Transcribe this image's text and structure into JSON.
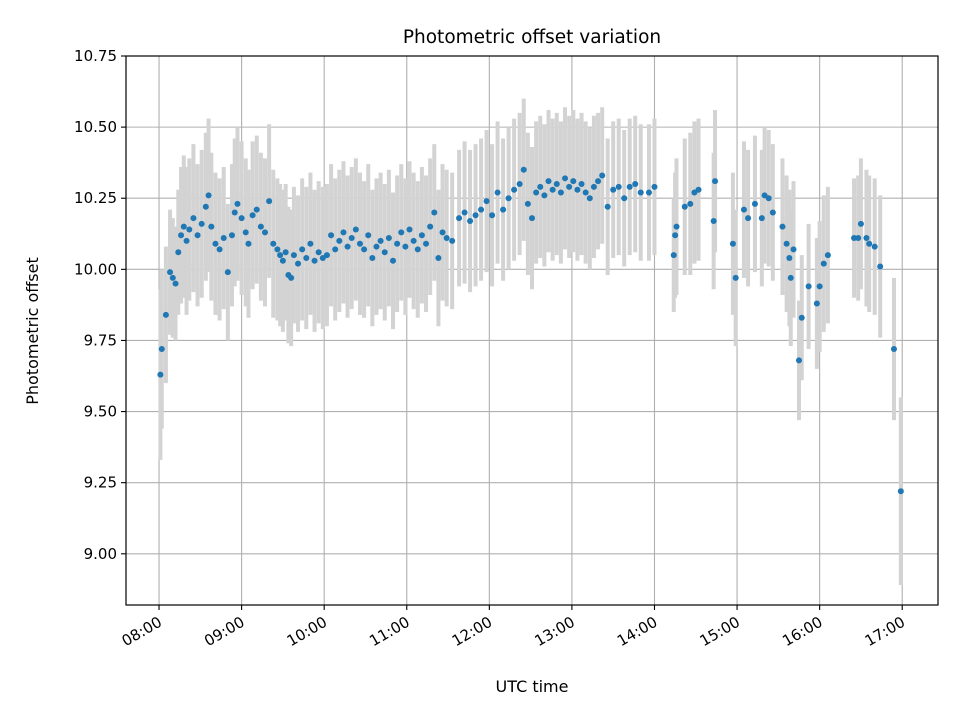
{
  "chart_data": {
    "type": "scatter",
    "title": "Photometric offset variation",
    "xlabel": "UTC time",
    "ylabel": "Photometric offset",
    "xlim": [
      "07:36",
      "17:26"
    ],
    "ylim": [
      8.82,
      10.75
    ],
    "x_ticks": [
      "08:00",
      "09:00",
      "10:00",
      "11:00",
      "12:00",
      "13:00",
      "14:00",
      "15:00",
      "16:00",
      "17:00"
    ],
    "y_ticks": [
      "9.00",
      "9.25",
      "9.50",
      "9.75",
      "10.00",
      "10.25",
      "10.50",
      "10.75"
    ],
    "grid": true,
    "colors": {
      "point": "#1f77b4",
      "errorbar": "#d3d3d3",
      "grid": "#b0b0b0"
    },
    "series": [
      {
        "points": [
          [
            "08:01",
            9.63,
            0.3
          ],
          [
            "08:02",
            9.72,
            0.28
          ],
          [
            "08:05",
            9.84,
            0.24
          ],
          [
            "08:08",
            9.99,
            0.22
          ],
          [
            "08:10",
            9.97,
            0.21
          ],
          [
            "08:12",
            9.95,
            0.2
          ],
          [
            "08:14",
            10.06,
            0.22
          ],
          [
            "08:16",
            10.12,
            0.24
          ],
          [
            "08:18",
            10.15,
            0.25
          ],
          [
            "08:20",
            10.1,
            0.26
          ],
          [
            "08:22",
            10.14,
            0.25
          ],
          [
            "08:25",
            10.18,
            0.26
          ],
          [
            "08:28",
            10.12,
            0.25
          ],
          [
            "08:31",
            10.16,
            0.26
          ],
          [
            "08:34",
            10.22,
            0.26
          ],
          [
            "08:36",
            10.26,
            0.27
          ],
          [
            "08:38",
            10.15,
            0.26
          ],
          [
            "08:41",
            10.09,
            0.25
          ],
          [
            "08:44",
            10.07,
            0.25
          ],
          [
            "08:47",
            10.11,
            0.25
          ],
          [
            "08:50",
            9.99,
            0.24
          ],
          [
            "08:53",
            10.12,
            0.25
          ],
          [
            "08:55",
            10.2,
            0.26
          ],
          [
            "08:57",
            10.23,
            0.27
          ],
          [
            "09:00",
            10.18,
            0.27
          ],
          [
            "09:03",
            10.13,
            0.26
          ],
          [
            "09:05",
            10.09,
            0.26
          ],
          [
            "09:08",
            10.19,
            0.26
          ],
          [
            "09:11",
            10.21,
            0.26
          ],
          [
            "09:14",
            10.15,
            0.26
          ],
          [
            "09:17",
            10.13,
            0.26
          ],
          [
            "09:20",
            10.24,
            0.27
          ],
          [
            "09:23",
            10.09,
            0.26
          ],
          [
            "09:26",
            10.07,
            0.25
          ],
          [
            "09:28",
            10.05,
            0.25
          ],
          [
            "09:30",
            10.03,
            0.25
          ],
          [
            "09:32",
            10.06,
            0.24
          ],
          [
            "09:34",
            9.98,
            0.24
          ],
          [
            "09:36",
            9.97,
            0.24
          ],
          [
            "09:38",
            10.05,
            0.24
          ],
          [
            "09:41",
            10.02,
            0.24
          ],
          [
            "09:44",
            10.07,
            0.25
          ],
          [
            "09:47",
            10.04,
            0.25
          ],
          [
            "09:50",
            10.09,
            0.25
          ],
          [
            "09:53",
            10.03,
            0.25
          ],
          [
            "09:56",
            10.06,
            0.25
          ],
          [
            "09:59",
            10.04,
            0.25
          ],
          [
            "10:02",
            10.05,
            0.25
          ],
          [
            "10:05",
            10.12,
            0.25
          ],
          [
            "10:08",
            10.07,
            0.25
          ],
          [
            "10:11",
            10.1,
            0.25
          ],
          [
            "10:14",
            10.13,
            0.25
          ],
          [
            "10:17",
            10.08,
            0.25
          ],
          [
            "10:20",
            10.11,
            0.25
          ],
          [
            "10:23",
            10.14,
            0.25
          ],
          [
            "10:26",
            10.09,
            0.25
          ],
          [
            "10:29",
            10.07,
            0.24
          ],
          [
            "10:32",
            10.12,
            0.25
          ],
          [
            "10:35",
            10.04,
            0.24
          ],
          [
            "10:38",
            10.08,
            0.24
          ],
          [
            "10:41",
            10.1,
            0.24
          ],
          [
            "10:44",
            10.06,
            0.24
          ],
          [
            "10:47",
            10.11,
            0.24
          ],
          [
            "10:50",
            10.03,
            0.24
          ],
          [
            "10:53",
            10.09,
            0.24
          ],
          [
            "10:56",
            10.13,
            0.24
          ],
          [
            "10:59",
            10.08,
            0.24
          ],
          [
            "11:02",
            10.14,
            0.24
          ],
          [
            "11:05",
            10.1,
            0.24
          ],
          [
            "11:08",
            10.07,
            0.24
          ],
          [
            "11:11",
            10.12,
            0.24
          ],
          [
            "11:14",
            10.09,
            0.24
          ],
          [
            "11:17",
            10.15,
            0.24
          ],
          [
            "11:20",
            10.2,
            0.24
          ],
          [
            "11:23",
            10.04,
            0.24
          ],
          [
            "11:26",
            10.13,
            0.24
          ],
          [
            "11:29",
            10.11,
            0.24
          ],
          [
            "11:33",
            10.1,
            0.24
          ],
          [
            "11:38",
            10.18,
            0.24
          ],
          [
            "11:42",
            10.2,
            0.25
          ],
          [
            "11:46",
            10.17,
            0.25
          ],
          [
            "11:50",
            10.19,
            0.25
          ],
          [
            "11:54",
            10.21,
            0.25
          ],
          [
            "11:58",
            10.24,
            0.25
          ],
          [
            "12:02",
            10.19,
            0.25
          ],
          [
            "12:06",
            10.27,
            0.25
          ],
          [
            "12:10",
            10.21,
            0.25
          ],
          [
            "12:14",
            10.25,
            0.25
          ],
          [
            "12:18",
            10.28,
            0.25
          ],
          [
            "12:22",
            10.3,
            0.25
          ],
          [
            "12:25",
            10.35,
            0.25
          ],
          [
            "12:28",
            10.23,
            0.25
          ],
          [
            "12:31",
            10.18,
            0.25
          ],
          [
            "12:34",
            10.27,
            0.25
          ],
          [
            "12:37",
            10.29,
            0.25
          ],
          [
            "12:40",
            10.26,
            0.25
          ],
          [
            "12:43",
            10.31,
            0.25
          ],
          [
            "12:46",
            10.28,
            0.25
          ],
          [
            "12:49",
            10.3,
            0.25
          ],
          [
            "12:52",
            10.27,
            0.25
          ],
          [
            "12:55",
            10.32,
            0.25
          ],
          [
            "12:58",
            10.29,
            0.25
          ],
          [
            "13:01",
            10.31,
            0.25
          ],
          [
            "13:04",
            10.28,
            0.25
          ],
          [
            "13:07",
            10.3,
            0.25
          ],
          [
            "13:10",
            10.27,
            0.25
          ],
          [
            "13:13",
            10.25,
            0.25
          ],
          [
            "13:16",
            10.29,
            0.25
          ],
          [
            "13:19",
            10.31,
            0.24
          ],
          [
            "13:22",
            10.33,
            0.24
          ],
          [
            "13:26",
            10.22,
            0.24
          ],
          [
            "13:30",
            10.28,
            0.24
          ],
          [
            "13:34",
            10.29,
            0.24
          ],
          [
            "13:38",
            10.25,
            0.24
          ],
          [
            "13:42",
            10.29,
            0.24
          ],
          [
            "13:46",
            10.3,
            0.24
          ],
          [
            "13:50",
            10.27,
            0.24
          ],
          [
            "13:56",
            10.27,
            0.24
          ],
          [
            "14:00",
            10.29,
            0.24
          ],
          [
            "14:14",
            10.05,
            0.2
          ],
          [
            "14:15",
            10.12,
            0.22
          ],
          [
            "14:16",
            10.15,
            0.24
          ],
          [
            "14:22",
            10.22,
            0.24
          ],
          [
            "14:26",
            10.23,
            0.25
          ],
          [
            "14:29",
            10.27,
            0.25
          ],
          [
            "14:32",
            10.28,
            0.25
          ],
          [
            "14:43",
            10.17,
            0.24
          ],
          [
            "14:44",
            10.31,
            0.25
          ],
          [
            "14:57",
            10.09,
            0.25
          ],
          [
            "14:59",
            9.97,
            0.24
          ],
          [
            "15:05",
            10.21,
            0.24
          ],
          [
            "15:08",
            10.18,
            0.24
          ],
          [
            "15:13",
            10.23,
            0.24
          ],
          [
            "15:18",
            10.18,
            0.24
          ],
          [
            "15:20",
            10.26,
            0.24
          ],
          [
            "15:23",
            10.25,
            0.24
          ],
          [
            "15:26",
            10.2,
            0.24
          ],
          [
            "15:33",
            10.15,
            0.24
          ],
          [
            "15:36",
            10.09,
            0.24
          ],
          [
            "15:38",
            10.04,
            0.24
          ],
          [
            "15:39",
            9.97,
            0.24
          ],
          [
            "15:41",
            10.07,
            0.24
          ],
          [
            "15:45",
            9.68,
            0.21
          ],
          [
            "15:47",
            9.83,
            0.22
          ],
          [
            "15:52",
            9.94,
            0.22
          ],
          [
            "15:58",
            9.88,
            0.23
          ],
          [
            "16:00",
            9.94,
            0.23
          ],
          [
            "16:03",
            10.02,
            0.24
          ],
          [
            "16:06",
            10.05,
            0.24
          ],
          [
            "16:25",
            10.11,
            0.21
          ],
          [
            "16:28",
            10.11,
            0.22
          ],
          [
            "16:30",
            10.16,
            0.23
          ],
          [
            "16:34",
            10.11,
            0.24
          ],
          [
            "16:36",
            10.09,
            0.24
          ],
          [
            "16:40",
            10.08,
            0.24
          ],
          [
            "16:44",
            10.01,
            0.25
          ],
          [
            "16:54",
            9.72,
            0.25
          ],
          [
            "16:59",
            9.22,
            0.33
          ]
        ]
      }
    ]
  }
}
